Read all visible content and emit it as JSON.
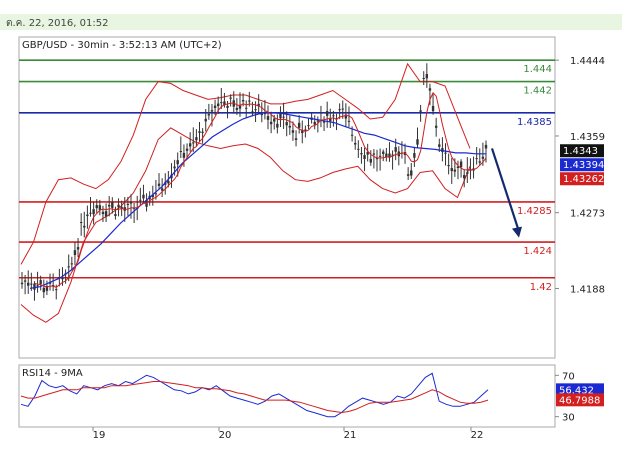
{
  "header": {
    "datetime": "ต.ค. 22, 2016, 01:52"
  },
  "chart_data": {
    "type": "candlestick",
    "title": "GBP/USD - 30min - 3:52:13 AM (UTC+2)",
    "x_ticks": [
      "19",
      "20",
      "21",
      "22"
    ],
    "y_ticks": [
      "1.4444",
      "1.4359",
      "1.4273",
      "1.4188"
    ],
    "ylim": [
      1.411,
      1.447
    ],
    "levels": [
      {
        "value": 1.4444,
        "label": "1.444",
        "color": "#3a8a3a"
      },
      {
        "value": 1.442,
        "label": "1.442",
        "color": "#3a8a3a"
      },
      {
        "value": 1.4385,
        "label": "1.4385",
        "color": "#1a2aaa"
      },
      {
        "value": 1.4285,
        "label": "1.4285",
        "color": "#d21f1f"
      },
      {
        "value": 1.424,
        "label": "1.424",
        "color": "#d21f1f"
      },
      {
        "value": 1.42,
        "label": "1.42",
        "color": "#d21f1f"
      }
    ],
    "price_tags": [
      {
        "label": "1.4343",
        "value": 1.4343,
        "bg": "#111111"
      },
      {
        "label": "1.43394",
        "value": 1.43394,
        "bg": "#1a2ad0"
      },
      {
        "label": "1.43262",
        "value": 1.43262,
        "bg": "#d21f1f"
      }
    ],
    "price_path": [
      1.4195,
      1.4198,
      1.4192,
      1.419,
      1.4188,
      1.4195,
      1.42,
      1.423,
      1.4262,
      1.428,
      1.4282,
      1.4278,
      1.428,
      1.4276,
      1.4275,
      1.4279,
      1.4285,
      1.4292,
      1.43,
      1.4312,
      1.4325,
      1.434,
      1.4345,
      1.4355,
      1.437,
      1.4388,
      1.44,
      1.4395,
      1.439,
      1.4398,
      1.4395,
      1.4388,
      1.4385,
      1.438,
      1.4378,
      1.4372,
      1.436,
      1.4368,
      1.4372,
      1.4375,
      1.4383,
      1.438,
      1.4385,
      1.4372,
      1.4352,
      1.434,
      1.4335,
      1.4332,
      1.433,
      1.4345,
      1.4345,
      1.4312,
      1.4358,
      1.4432,
      1.439,
      1.4345,
      1.433,
      1.4322,
      1.432,
      1.4325,
      1.4335,
      1.4342
    ],
    "sma": [
      1.4188,
      1.419,
      1.4195,
      1.42,
      1.4208,
      1.4218,
      1.4228,
      1.4238,
      1.425,
      1.4262,
      1.4272,
      1.4282,
      1.4292,
      1.4302,
      1.4315,
      1.4328,
      1.4338,
      1.4348,
      1.4358,
      1.4365,
      1.4372,
      1.4378,
      1.4382,
      1.4385,
      1.4385,
      1.4384,
      1.4382,
      1.438,
      1.4378,
      1.4376,
      1.4374,
      1.437,
      1.4366,
      1.4362,
      1.436,
      1.4356,
      1.4352,
      1.4348,
      1.4346,
      1.4345,
      1.4344,
      1.4342,
      1.434,
      1.434,
      1.4339,
      1.4339
    ],
    "bb_upper": [
      1.4215,
      1.424,
      1.4285,
      1.431,
      1.4312,
      1.4305,
      1.43,
      1.431,
      1.433,
      1.436,
      1.44,
      1.442,
      1.4418,
      1.441,
      1.4405,
      1.44,
      1.4402,
      1.4405,
      1.4405,
      1.44,
      1.4395,
      1.4395,
      1.4398,
      1.44,
      1.4405,
      1.441,
      1.44,
      1.439,
      1.4378,
      1.438,
      1.44,
      1.444,
      1.442,
      1.442,
      1.4415,
      1.438,
      1.4345
    ],
    "bb_lower": [
      1.417,
      1.4158,
      1.415,
      1.416,
      1.4195,
      1.424,
      1.4262,
      1.427,
      1.428,
      1.4295,
      1.432,
      1.4355,
      1.4368,
      1.436,
      1.4352,
      1.4348,
      1.4345,
      1.4348,
      1.435,
      1.4345,
      1.4335,
      1.432,
      1.431,
      1.4308,
      1.4312,
      1.4318,
      1.4322,
      1.4325,
      1.431,
      1.43,
      1.4295,
      1.43,
      1.4318,
      1.432,
      1.43,
      1.429,
      1.4325
    ],
    "arrow": {
      "from_value": 1.4345,
      "to_value": 1.4245,
      "color": "#152a6e"
    },
    "rsi": {
      "label": "RSI14 - 9MA",
      "y_ticks": [
        "70",
        "30"
      ],
      "ylim": [
        20,
        80
      ],
      "values": [
        42,
        40,
        50,
        65,
        60,
        58,
        60,
        55,
        52,
        60,
        58,
        56,
        60,
        62,
        60,
        64,
        62,
        66,
        70,
        68,
        64,
        60,
        56,
        55,
        52,
        54,
        58,
        56,
        60,
        55,
        50,
        48,
        46,
        44,
        42,
        45,
        50,
        52,
        48,
        44,
        40,
        36,
        34,
        32,
        30,
        30,
        34,
        40,
        44,
        48,
        46,
        44,
        42,
        44,
        50,
        48,
        52,
        60,
        68,
        72,
        45,
        42,
        40,
        40,
        42,
        44,
        50,
        56
      ],
      "ma": [
        50,
        48,
        48,
        50,
        52,
        54,
        56,
        56,
        56,
        58,
        58,
        58,
        58,
        60,
        60,
        60,
        61,
        62,
        63,
        64,
        64,
        63,
        62,
        61,
        60,
        58,
        58,
        57,
        57,
        56,
        55,
        53,
        52,
        50,
        48,
        46,
        46,
        46,
        46,
        45,
        44,
        42,
        40,
        38,
        36,
        35,
        34,
        35,
        37,
        40,
        43,
        44,
        44,
        44,
        45,
        46,
        47,
        50,
        53,
        56,
        54,
        50,
        47,
        44,
        43,
        43,
        44,
        46
      ],
      "tags": [
        {
          "label": "56.432",
          "value": 56.432,
          "bg": "#1a2ad0"
        },
        {
          "label": "46.7988",
          "value": 46.7988,
          "bg": "#d21f1f"
        }
      ]
    }
  }
}
